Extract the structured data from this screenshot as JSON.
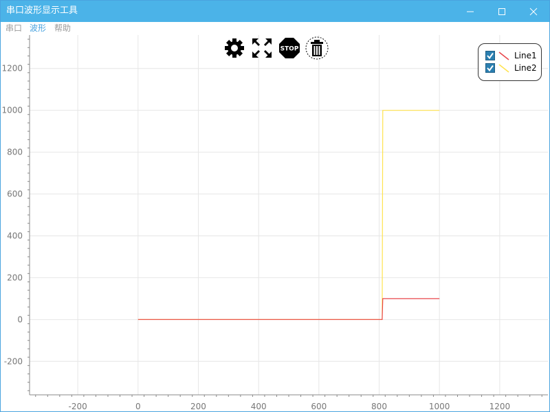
{
  "window": {
    "title": "串口波形显示工具",
    "controls": [
      "minimize-icon",
      "maximize-icon",
      "close-icon"
    ]
  },
  "menu": {
    "items": [
      "串口",
      "波形",
      "帮助"
    ],
    "active_index": 1
  },
  "toolbar": {
    "icons": [
      "gear-icon",
      "expand-icon",
      "stop-icon",
      "trash-icon"
    ],
    "stop_label": "STOP"
  },
  "legend": {
    "items": [
      {
        "label": "Line1",
        "checked": true,
        "color": "#e8454a"
      },
      {
        "label": "Line2",
        "checked": true,
        "color": "#ffe34d"
      }
    ]
  },
  "colors": {
    "titlebar": "#4bb3e8",
    "menu_active": "#4aa3df",
    "grid": "#e6e6e6",
    "axis": "#888888"
  },
  "chart_data": {
    "type": "line",
    "xlim": [
      -360,
      1360
    ],
    "ylim": [
      -360,
      1360
    ],
    "x_ticks": [
      -200,
      0,
      200,
      400,
      600,
      800,
      1000,
      1200
    ],
    "y_ticks": [
      -200,
      0,
      200,
      400,
      600,
      800,
      1000,
      1200
    ],
    "grid": true,
    "legend_position": "top-right",
    "series": [
      {
        "name": "Line1",
        "color": "#e8454a",
        "x": [
          0,
          810,
          812,
          1000
        ],
        "y": [
          0,
          0,
          100,
          100
        ]
      },
      {
        "name": "Line2",
        "color": "#ffe34d",
        "x": [
          0,
          810,
          812,
          1000
        ],
        "y": [
          0,
          0,
          1000,
          1000
        ]
      }
    ]
  }
}
